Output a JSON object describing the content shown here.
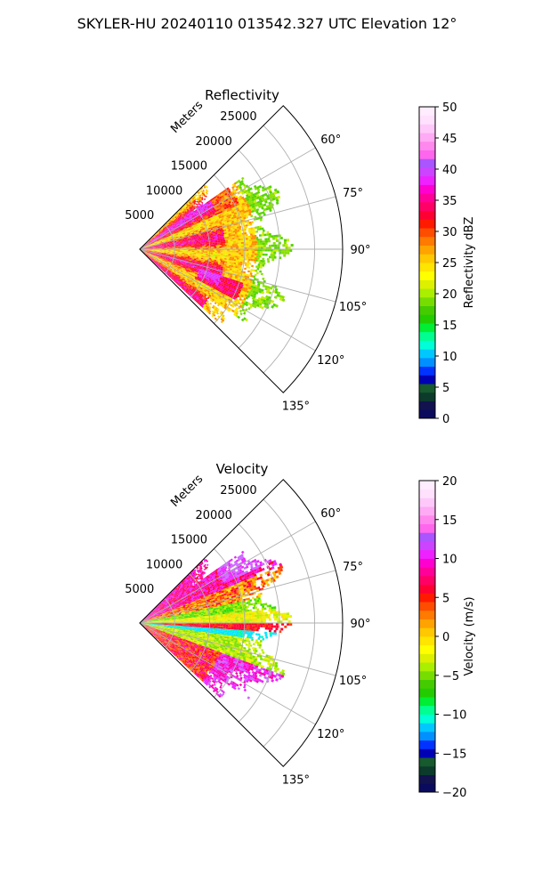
{
  "figure": {
    "suptitle": "SKYLER-HU  20240110  013542.327 UTC Elevation 12°"
  },
  "chart_data": [
    {
      "type": "heatmap",
      "projection": "polar-sector",
      "title": "Reflectivity",
      "range_label": "Meters",
      "range_ticks": [
        5000,
        10000,
        15000,
        20000,
        25000
      ],
      "range_tick_labels": [
        "5000",
        "10000",
        "15000",
        "20000",
        "25000"
      ],
      "range_max": 29000,
      "angle_range_deg": [
        45,
        135
      ],
      "angle_ticks": [
        60,
        75,
        90,
        105,
        120,
        135
      ],
      "angle_tick_labels": [
        "60°",
        "75°",
        "90°",
        "105°",
        "120°",
        "135°"
      ],
      "grid": true,
      "colorbar": {
        "label": "Reflectivity dBZ",
        "min": 0,
        "max": 50,
        "ticks": [
          0,
          5,
          10,
          15,
          20,
          25,
          30,
          35,
          40,
          45,
          50
        ],
        "tick_labels": [
          "0",
          "5",
          "10",
          "15",
          "20",
          "25",
          "30",
          "35",
          "40",
          "45",
          "50"
        ],
        "colors": [
          "#0b0b5e",
          "#12124f",
          "#0c3b2b",
          "#165a2e",
          "#0000b4",
          "#0033ff",
          "#0090ff",
          "#00c8ff",
          "#00ffd8",
          "#00ff90",
          "#00ee33",
          "#22cc00",
          "#44cc00",
          "#77dd00",
          "#aaee00",
          "#dcf000",
          "#ffff00",
          "#ffe500",
          "#ffc800",
          "#ffa300",
          "#ff7a00",
          "#ff4d00",
          "#ff1a00",
          "#ff0033",
          "#ff0066",
          "#ff0099",
          "#ff00d0",
          "#ee22ff",
          "#cc44ff",
          "#aa55ff",
          "#ff66ee",
          "#ff88ee",
          "#ffaaf5",
          "#ffc8fa",
          "#ffe0fd",
          "#ffecfe"
        ]
      },
      "field": "reflectivity",
      "echo_extent_m": 22000
    },
    {
      "type": "heatmap",
      "projection": "polar-sector",
      "title": "Velocity",
      "range_label": "Meters",
      "range_ticks": [
        5000,
        10000,
        15000,
        20000,
        25000
      ],
      "range_tick_labels": [
        "5000",
        "10000",
        "15000",
        "20000",
        "25000"
      ],
      "range_max": 29000,
      "angle_range_deg": [
        45,
        135
      ],
      "angle_ticks": [
        60,
        75,
        90,
        105,
        120,
        135
      ],
      "angle_tick_labels": [
        "60°",
        "75°",
        "90°",
        "105°",
        "120°",
        "135°"
      ],
      "grid": true,
      "colorbar": {
        "label": "Velocity (m/s)",
        "min": -20,
        "max": 20,
        "ticks": [
          -20,
          -15,
          -10,
          -5,
          0,
          5,
          10,
          15,
          20
        ],
        "tick_labels": [
          "−20",
          "−15",
          "−10",
          "−5",
          "0",
          "5",
          "10",
          "15",
          "20"
        ],
        "colors": [
          "#0b0b5e",
          "#12124f",
          "#0c3b2b",
          "#165a2e",
          "#0000b4",
          "#0033ff",
          "#0090ff",
          "#00c8ff",
          "#00ffd8",
          "#00ff90",
          "#00ee33",
          "#22cc00",
          "#44cc00",
          "#77dd00",
          "#aaee00",
          "#dcf000",
          "#ffff00",
          "#ffe500",
          "#ffc800",
          "#ffa300",
          "#ff7a00",
          "#ff4d00",
          "#ff1a00",
          "#ff0033",
          "#ff0066",
          "#ff0099",
          "#ff00d0",
          "#ee22ff",
          "#cc44ff",
          "#aa55ff",
          "#ff66ee",
          "#ff88ee",
          "#ffaaf5",
          "#ffc8fa",
          "#ffe0fd",
          "#ffecfe"
        ]
      },
      "field": "velocity",
      "echo_extent_m": 22000
    }
  ]
}
